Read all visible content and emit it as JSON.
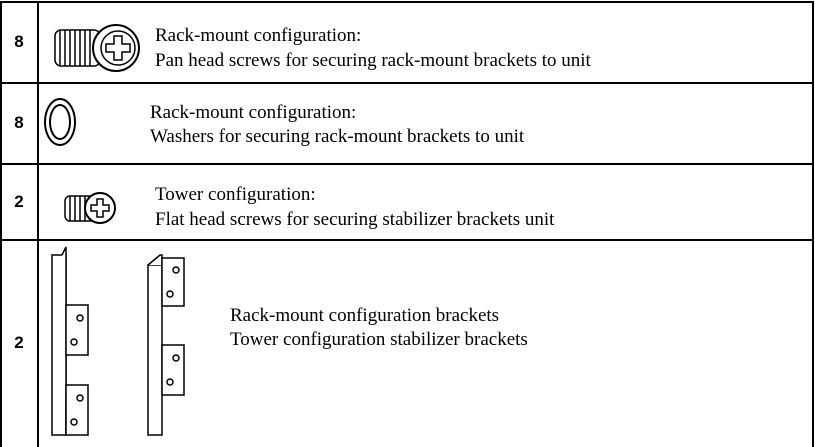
{
  "table": {
    "rows": [
      {
        "qty": "8",
        "lines": [
          "Rack-mount configuration:",
          "Pan head screws for securing rack-mount brackets to unit"
        ]
      },
      {
        "qty": "8",
        "lines": [
          "Rack-mount configuration:",
          "Washers for securing rack-mount brackets to unit"
        ]
      },
      {
        "qty": "2",
        "lines": [
          "Tower configuration:",
          "Flat head screws for securing stabilizer brackets unit"
        ]
      },
      {
        "qty": "2",
        "lines": [
          "Rack-mount configuration brackets",
          "Tower configuration stabilizer brackets"
        ]
      }
    ]
  }
}
